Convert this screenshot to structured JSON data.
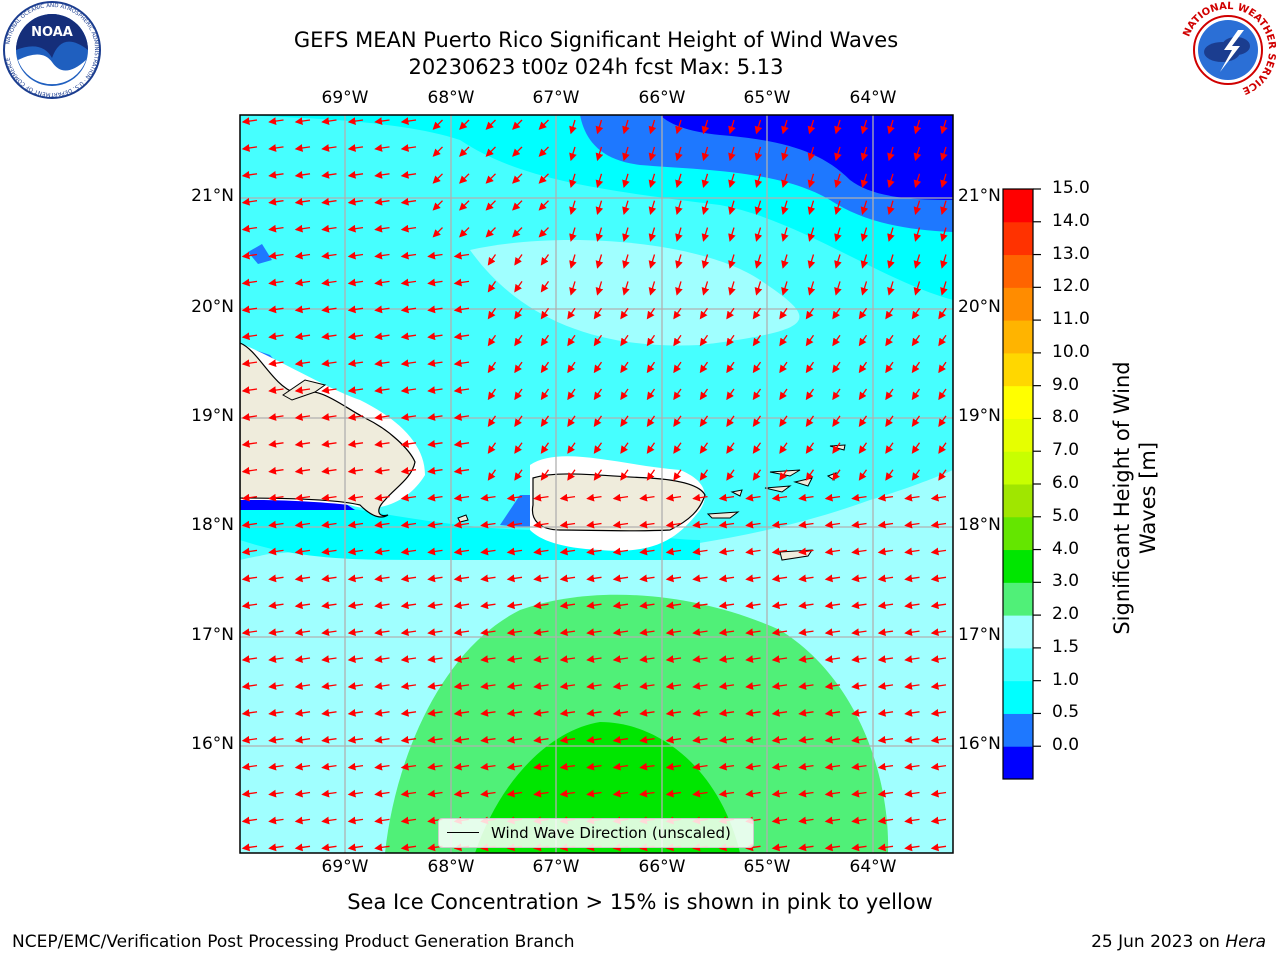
{
  "header": {
    "title_line1": "GEFS MEAN Puerto Rico Significant Height of Wind Waves",
    "title_line2": "20230623 t00z 024h fcst   Max: 5.13"
  },
  "logos": {
    "left": {
      "icon": "noaa-logo-icon",
      "text": "NOAA",
      "ring_text": "NATIONAL OCEANIC AND ATMOSPHERIC ADMINISTRATION · U.S. DEPARTMENT OF COMMERCE"
    },
    "right": {
      "icon": "nws-logo-icon",
      "ring_text": "NATIONAL WEATHER SERVICE"
    }
  },
  "map": {
    "lon_ticks": [
      "69°W",
      "68°W",
      "67°W",
      "66°W",
      "65°W",
      "64°W"
    ],
    "lat_ticks": [
      "21°N",
      "20°N",
      "19°N",
      "18°N",
      "17°N",
      "16°N"
    ],
    "lon_range": [
      -70.0,
      -63.25
    ],
    "lat_range": [
      15.0,
      21.75
    ],
    "grid": true,
    "land_color": "#efecdc",
    "arrow_color": "#ff0000",
    "legend": {
      "label": "Wind Wave Direction (unscaled)",
      "placement": "bottom-center"
    }
  },
  "colorbar": {
    "title_line1": "Significant Height of Wind",
    "title_line2": "Waves [m]",
    "ticks": [
      "15.0",
      "14.0",
      "13.0",
      "12.0",
      "11.0",
      "10.0",
      "9.0",
      "8.0",
      "7.0",
      "6.0",
      "5.0",
      "4.0",
      "3.0",
      "2.0",
      "1.5",
      "1.0",
      "0.5",
      "0.0"
    ],
    "colors": [
      "#0000ff",
      "#1e78ff",
      "#00ffff",
      "#46ffff",
      "#a0ffff",
      "#50f078",
      "#00e600",
      "#64e600",
      "#a0e600",
      "#c8ff00",
      "#e6ff00",
      "#ffff00",
      "#ffd700",
      "#ffb400",
      "#ff8c00",
      "#ff6400",
      "#ff3200",
      "#ff0000"
    ]
  },
  "footer": {
    "note": "Sea Ice Concentration > 15% is shown in pink to yellow",
    "left": "NCEP/EMC/Verification Post Processing Product Generation Branch",
    "right_date": "25 Jun 2023 on ",
    "right_host": "Hera"
  }
}
